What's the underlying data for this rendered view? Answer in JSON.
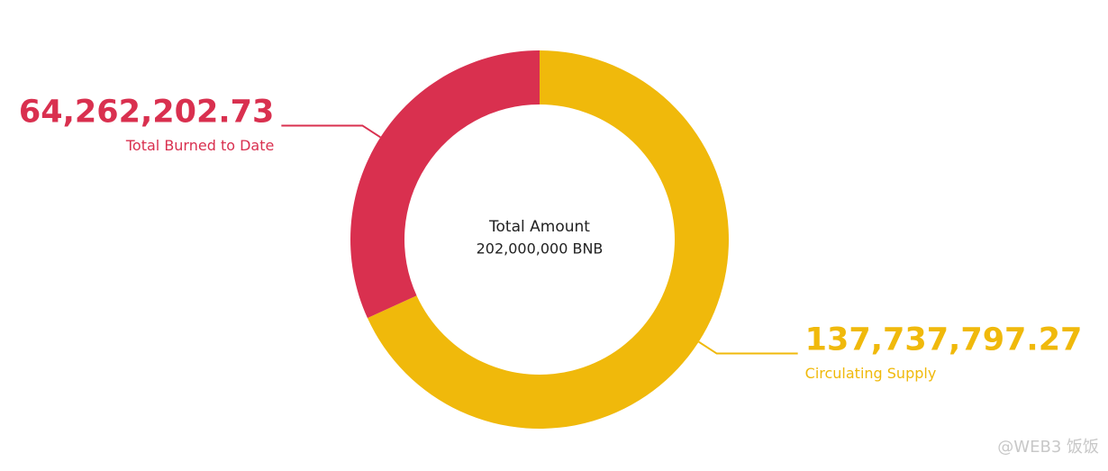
{
  "chart_data": {
    "type": "donut",
    "categories": [
      "Circulating Supply",
      "Total Burned to Date"
    ],
    "values": [
      137737797.27,
      64262202.73
    ],
    "value_labels": [
      "137,737,797.27",
      "64,262,202.73"
    ],
    "colors": [
      "#f0b90b",
      "#d9304f"
    ],
    "center_title": "Total Amount",
    "center_subtitle": "202,000,000 BNB"
  },
  "watermark": "@WEB3 饭饭"
}
